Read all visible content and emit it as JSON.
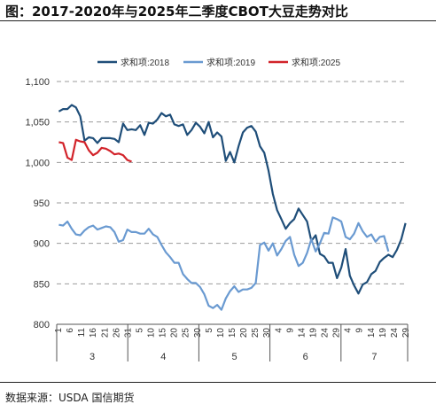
{
  "title": "图：2017-2020年与2025年二季度CBOT大豆走势对比",
  "source": "数据来源：USDA 国信期货",
  "colors": {
    "s2018": "#1f4e79",
    "s2019": "#6a9ad1",
    "s2025": "#d2232a",
    "grid": "#9b9b9b",
    "axis": "#555555"
  },
  "chart_data": {
    "type": "line",
    "title": "",
    "xlabel": "",
    "ylabel": "",
    "ylim": [
      800,
      1100
    ],
    "yticks": [
      "800",
      "850",
      "900",
      "950",
      "1,000",
      "1,050",
      "1,100"
    ],
    "ytick_values": [
      800,
      850,
      900,
      950,
      1000,
      1050,
      1100
    ],
    "grid": "horizontal dashed",
    "legend_position": "top",
    "x_tick_labels": [
      "1",
      "6",
      "11",
      "16",
      "21",
      "26",
      "31",
      "5",
      "10",
      "15",
      "20",
      "25",
      "30",
      "5",
      "10",
      "15",
      "20",
      "25",
      "30",
      "4",
      "9",
      "14",
      "19",
      "24",
      "29",
      "4",
      "9",
      "14",
      "19",
      "24",
      "29"
    ],
    "months": [
      "3",
      "4",
      "5",
      "6",
      "7"
    ],
    "month_boundaries": [
      0,
      16,
      32,
      48,
      64,
      79
    ],
    "series": [
      {
        "name": "求和项:2018",
        "values": [
          1063,
          1066,
          1066,
          1071,
          1068,
          1057,
          1027,
          1031,
          1030,
          1024,
          1030,
          1030,
          1030,
          1029,
          1025,
          1048,
          1040,
          1041,
          1040,
          1046,
          1034,
          1049,
          1048,
          1053,
          1061,
          1057,
          1059,
          1047,
          1045,
          1047,
          1034,
          1040,
          1049,
          1044,
          1036,
          1050,
          1031,
          1037,
          1032,
          1002,
          1013,
          1000,
          1020,
          1037,
          1043,
          1045,
          1038,
          1020,
          1012,
          990,
          961,
          941,
          930,
          918,
          925,
          930,
          943,
          935,
          927,
          903,
          910,
          887,
          884,
          876,
          876,
          857,
          870,
          893,
          860,
          848,
          838,
          849,
          852,
          862,
          866,
          877,
          882,
          886,
          883,
          892,
          905,
          925
        ]
      },
      {
        "name": "求和项:2019",
        "values": [
          923,
          922,
          927,
          918,
          911,
          910,
          916,
          920,
          922,
          917,
          919,
          921,
          920,
          914,
          902,
          904,
          917,
          914,
          914,
          912,
          912,
          918,
          911,
          908,
          898,
          889,
          883,
          876,
          876,
          862,
          856,
          851,
          851,
          846,
          837,
          823,
          820,
          824,
          818,
          832,
          841,
          847,
          840,
          843,
          843,
          845,
          851,
          898,
          901,
          891,
          900,
          885,
          893,
          903,
          908,
          886,
          872,
          876,
          888,
          905,
          890,
          900,
          913,
          912,
          932,
          930,
          927,
          908,
          905,
          912,
          925,
          915,
          908,
          911,
          902,
          908,
          909,
          890
        ]
      },
      {
        "name": "求和项:2025",
        "values": [
          1025,
          1024,
          1006,
          1003,
          1028,
          1026,
          1025,
          1015,
          1009,
          1012,
          1018,
          1017,
          1014,
          1010,
          1011,
          1009,
          1003,
          1001
        ]
      }
    ]
  }
}
